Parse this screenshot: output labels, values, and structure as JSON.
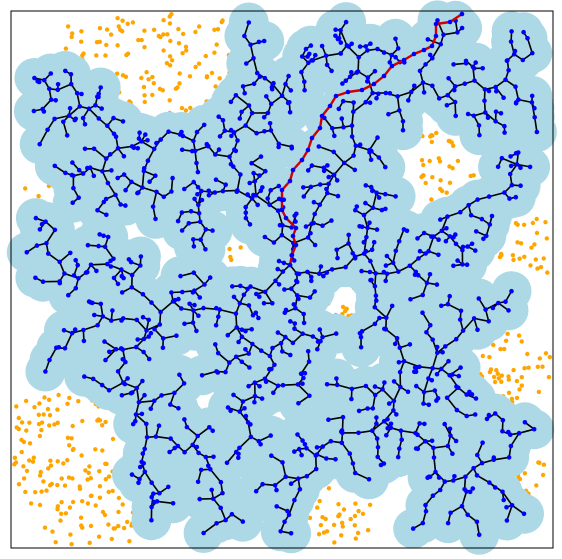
{
  "figure": {
    "kind": "rrt-path-planning-tree",
    "axis_ticks": "none",
    "frame": "plain-black-box"
  },
  "colors": {
    "background": "#ffffff",
    "explored_region": "#add8e6",
    "tree_edges": "#000000",
    "tree_nodes": "#0000ff",
    "free_samples": "#ffa500",
    "solution_path": "#d00000",
    "frame": "#000000"
  },
  "legend": "none",
  "title": "",
  "seed": 7
}
